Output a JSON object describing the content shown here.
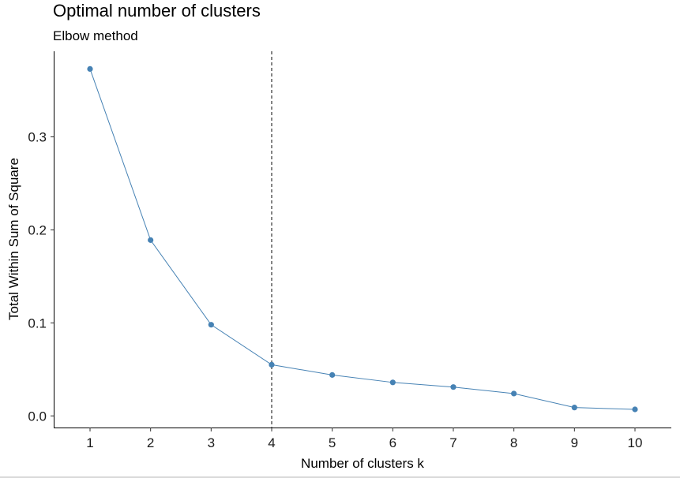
{
  "chart_data": {
    "type": "line",
    "title": "Optimal number of clusters",
    "subtitle": "Elbow method",
    "xlabel": "Number of clusters k",
    "ylabel": "Total Within Sum of Square",
    "x": [
      1,
      2,
      3,
      4,
      5,
      6,
      7,
      8,
      9,
      10
    ],
    "x_tick_labels": [
      "1",
      "2",
      "3",
      "4",
      "5",
      "6",
      "7",
      "8",
      "9",
      "10"
    ],
    "series": [
      {
        "values": [
          0.373,
          0.189,
          0.098,
          0.055,
          0.044,
          0.036,
          0.031,
          0.024,
          0.009,
          0.007
        ],
        "color": "#4682B4"
      }
    ],
    "y_ticks": [
      0.0,
      0.1,
      0.2,
      0.3
    ],
    "y_tick_labels": [
      "0.0",
      "0.1",
      "0.2",
      "0.3"
    ],
    "xlim": [
      0.4,
      10.6
    ],
    "ylim": [
      -0.0125,
      0.392
    ],
    "reference_line": {
      "x": 4,
      "style": "dashed"
    },
    "grid": false,
    "legend": "none"
  }
}
